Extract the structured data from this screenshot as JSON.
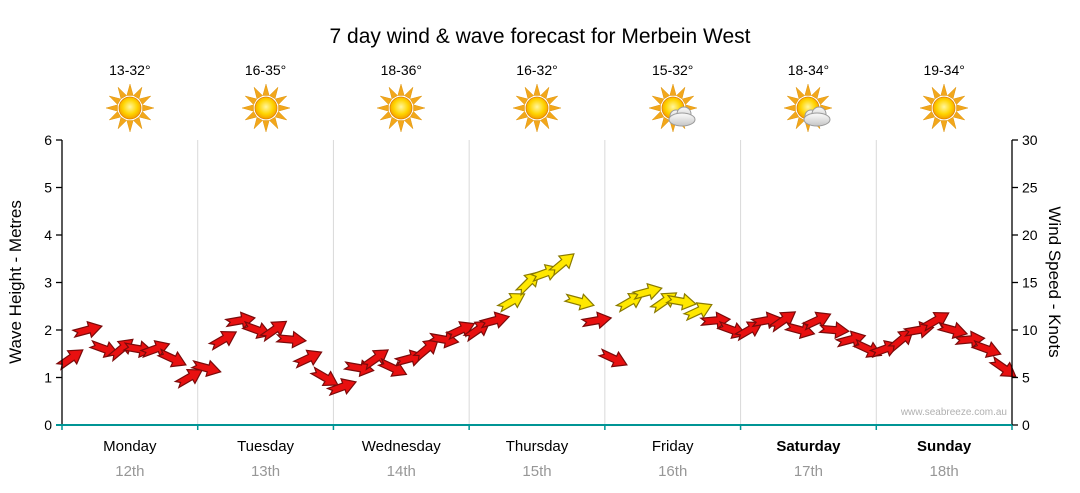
{
  "title": "7 day wind & wave forecast for Merbein West",
  "watermark": "www.seabreeze.com.au",
  "left_axis": {
    "label": "Wave Height - Metres",
    "min": 0,
    "max": 6,
    "step": 1
  },
  "right_axis": {
    "label": "Wind Speed - Knots",
    "min": 0,
    "max": 30,
    "step": 5
  },
  "days": [
    {
      "name": "Monday",
      "date": "12th",
      "temp": "13-32°",
      "icon": "sunny",
      "bold": false
    },
    {
      "name": "Tuesday",
      "date": "13th",
      "temp": "16-35°",
      "icon": "sunny",
      "bold": false
    },
    {
      "name": "Wednesday",
      "date": "14th",
      "temp": "18-36°",
      "icon": "sunny",
      "bold": false
    },
    {
      "name": "Thursday",
      "date": "15th",
      "temp": "16-32°",
      "icon": "sunny",
      "bold": false
    },
    {
      "name": "Friday",
      "date": "16th",
      "temp": "15-32°",
      "icon": "partly-cloudy",
      "bold": false
    },
    {
      "name": "Saturday",
      "date": "17th",
      "temp": "18-34°",
      "icon": "partly-cloudy",
      "bold": true
    },
    {
      "name": "Sunday",
      "date": "18th",
      "temp": "19-34°",
      "icon": "sunny",
      "bold": true
    }
  ],
  "chart_data": {
    "type": "wind-arrows",
    "description": "Wind speed in knots (right axis) / wave height metres (left axis, 1m = 5kt). 8 samples per day, arrow rotation = wind direction tilt in degrees (negative = tilted upward).",
    "ylim_knots": [
      0,
      30
    ],
    "ylim_metres": [
      0,
      6
    ],
    "colors": {
      "low_fill": "#e81010",
      "low_stroke": "#7a0a0a",
      "high_fill": "#ffe800",
      "high_stroke": "#8a7a00",
      "yellow_threshold_knots": 12,
      "grid": "#d9d9d9",
      "axis": "#000000",
      "baseline": "#009595"
    },
    "points": [
      [
        7,
        -35
      ],
      [
        10,
        -15
      ],
      [
        8,
        20
      ],
      [
        8,
        -40
      ],
      [
        8,
        10
      ],
      [
        8,
        -20
      ],
      [
        7,
        25
      ],
      [
        5,
        -30
      ],
      [
        6,
        15
      ],
      [
        9,
        -30
      ],
      [
        11,
        -10
      ],
      [
        10,
        20
      ],
      [
        10,
        -35
      ],
      [
        9,
        5
      ],
      [
        7,
        -25
      ],
      [
        5,
        30
      ],
      [
        4,
        -20
      ],
      [
        6,
        10
      ],
      [
        7,
        -35
      ],
      [
        6,
        25
      ],
      [
        7,
        -15
      ],
      [
        8,
        -40
      ],
      [
        9,
        10
      ],
      [
        10,
        -25
      ],
      [
        10,
        -35
      ],
      [
        11,
        -15
      ],
      [
        13,
        -30
      ],
      [
        15,
        -45
      ],
      [
        16,
        -20
      ],
      [
        17,
        -40
      ],
      [
        13,
        15
      ],
      [
        11,
        -10
      ],
      [
        7,
        25
      ],
      [
        13,
        -30
      ],
      [
        14,
        -15
      ],
      [
        13,
        -35
      ],
      [
        13,
        10
      ],
      [
        12,
        -25
      ],
      [
        11,
        -5
      ],
      [
        10,
        20
      ],
      [
        10,
        -30
      ],
      [
        11,
        -10
      ],
      [
        11,
        -35
      ],
      [
        10,
        15
      ],
      [
        11,
        -25
      ],
      [
        10,
        5
      ],
      [
        9,
        -15
      ],
      [
        8,
        25
      ],
      [
        8,
        -20
      ],
      [
        9,
        -40
      ],
      [
        10,
        -10
      ],
      [
        11,
        -30
      ],
      [
        10,
        15
      ],
      [
        9,
        -5
      ],
      [
        8,
        20
      ],
      [
        6,
        35
      ]
    ]
  }
}
